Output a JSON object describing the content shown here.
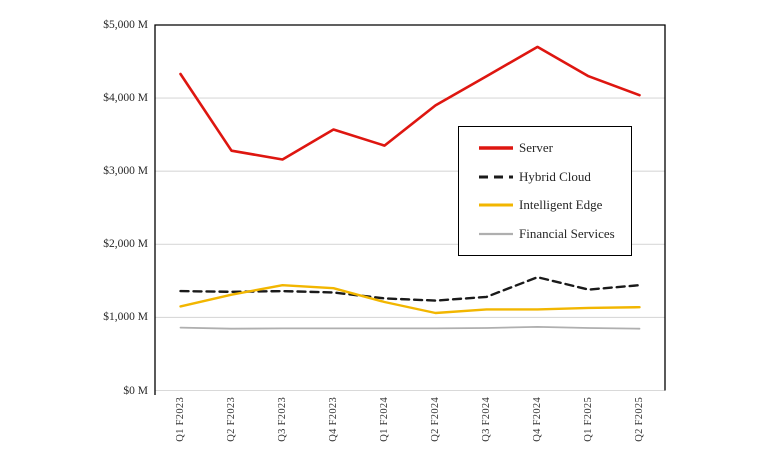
{
  "chart_data": {
    "type": "line",
    "title": "",
    "xlabel": "",
    "ylabel": "",
    "grid": "horizontal",
    "legend_position": "inside-right",
    "ylim": [
      0,
      5000
    ],
    "y_ticks": [
      {
        "label": "$5,000 M",
        "value": 5000
      },
      {
        "label": "$4,000 M",
        "value": 4000
      },
      {
        "label": "$3,000 M",
        "value": 3000
      },
      {
        "label": "$2,000 M",
        "value": 2000
      },
      {
        "label": "$1,000 M",
        "value": 1000
      },
      {
        "label": "$0 M",
        "value": 0
      }
    ],
    "categories": [
      "Q1 F2023",
      "Q2 F2023",
      "Q3 F2023",
      "Q4 F2023",
      "Q1 F2024",
      "Q2 F2024",
      "Q3 F2024",
      "Q4 F2024",
      "Q1 F2025",
      "Q2 F2025"
    ],
    "series": [
      {
        "name": "Server",
        "color": "#DE1610",
        "style": "solid",
        "line_width": 2.6,
        "values": [
          4330,
          3280,
          3160,
          3570,
          3350,
          3900,
          4300,
          4700,
          4300,
          4040
        ]
      },
      {
        "name": "Hybrid Cloud",
        "color": "#1A1A1A",
        "style": "dashed",
        "line_width": 2.4,
        "values": [
          1360,
          1350,
          1360,
          1340,
          1260,
          1230,
          1280,
          1550,
          1380,
          1440
        ]
      },
      {
        "name": "Intelligent Edge",
        "color": "#F2B600",
        "style": "solid",
        "line_width": 2.4,
        "values": [
          1150,
          1310,
          1440,
          1400,
          1210,
          1060,
          1110,
          1110,
          1130,
          1140
        ]
      },
      {
        "name": "Financial Services",
        "color": "#AFAFAF",
        "style": "solid",
        "line_width": 1.8,
        "values": [
          860,
          845,
          850,
          850,
          850,
          850,
          855,
          870,
          855,
          845
        ]
      }
    ]
  },
  "colors": {
    "background": "#FFFFFF",
    "gridline": "#D9D9D9",
    "axis": "#000000",
    "label_text": "#262626"
  }
}
